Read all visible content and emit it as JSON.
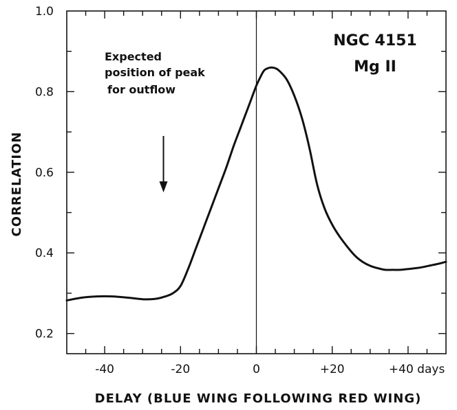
{
  "chart_data": {
    "type": "line",
    "title": "",
    "panel_label": [
      "NGC 4151",
      "Mg II"
    ],
    "xlabel": "DELAY (BLUE WING FOLLOWING RED WING)",
    "ylabel": "CORRELATION",
    "xlim": [
      -50,
      50
    ],
    "ylim": [
      0.15,
      1.0
    ],
    "x_ticks": [
      {
        "value": -40,
        "label": "-40"
      },
      {
        "value": -20,
        "label": "-20"
      },
      {
        "value": 0,
        "label": "0"
      },
      {
        "value": 20,
        "label": "+20"
      },
      {
        "value": 40,
        "label": "+40 days"
      }
    ],
    "y_ticks": [
      {
        "value": 0.2,
        "label": "0.2"
      },
      {
        "value": 0.4,
        "label": "0.4"
      },
      {
        "value": 0.6,
        "label": "0.6"
      },
      {
        "value": 0.8,
        "label": "0.8"
      },
      {
        "value": 1.0,
        "label": "1.0"
      }
    ],
    "vertical_line_x": 0,
    "grid": false,
    "annotation": {
      "lines": [
        "Expected",
        "position of peak",
        "for outflow"
      ],
      "arrow_x": -24.5,
      "arrow_from_y": 0.69,
      "arrow_to_y": 0.55
    },
    "series": [
      {
        "x": [
          -50,
          -46,
          -42,
          -38,
          -34,
          -30,
          -28,
          -26,
          -24,
          -22,
          -20,
          -18,
          -16,
          -14,
          -12,
          -10,
          -8,
          -6,
          -4,
          -2,
          0,
          1,
          2,
          3,
          4,
          5,
          6,
          8,
          10,
          12,
          14,
          16,
          18,
          20,
          22,
          24,
          26,
          28,
          30,
          32,
          34,
          36,
          38,
          40,
          42,
          44,
          46,
          48,
          50
        ],
        "values": [
          0.282,
          0.289,
          0.292,
          0.292,
          0.289,
          0.285,
          0.285,
          0.287,
          0.292,
          0.3,
          0.318,
          0.36,
          0.41,
          0.46,
          0.51,
          0.56,
          0.61,
          0.665,
          0.715,
          0.765,
          0.815,
          0.835,
          0.852,
          0.858,
          0.86,
          0.858,
          0.852,
          0.83,
          0.79,
          0.735,
          0.66,
          0.57,
          0.51,
          0.47,
          0.44,
          0.415,
          0.393,
          0.378,
          0.368,
          0.362,
          0.358,
          0.358,
          0.358,
          0.36,
          0.362,
          0.365,
          0.369,
          0.373,
          0.378
        ]
      }
    ]
  }
}
